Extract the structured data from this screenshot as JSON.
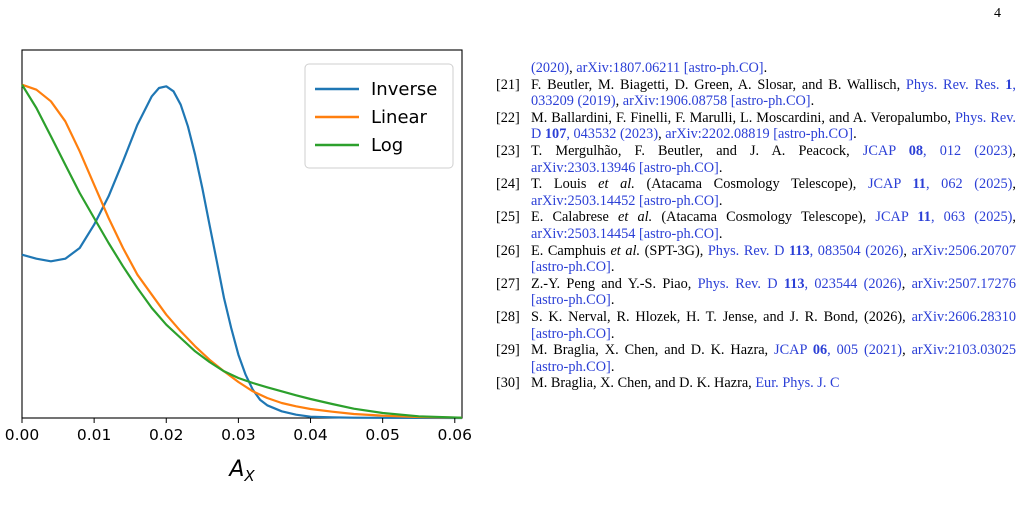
{
  "page_number": "4",
  "chart_data": {
    "type": "line",
    "xlabel": "A_X",
    "xlabel_main": "A",
    "xlabel_sub": "X",
    "ylabel": "",
    "xlim": [
      0.0,
      0.061
    ],
    "ylim": [
      0.0,
      1.05
    ],
    "x_ticks": [
      "0.00",
      "0.01",
      "0.02",
      "0.03",
      "0.04",
      "0.05",
      "0.06"
    ],
    "x_tick_values": [
      0.0,
      0.01,
      0.02,
      0.03,
      0.04,
      0.05,
      0.06
    ],
    "grid": false,
    "legend_position": "top-right",
    "series": [
      {
        "name": "Inverse",
        "color": "#1f77b4",
        "x": [
          0.0,
          0.002,
          0.004,
          0.006,
          0.008,
          0.01,
          0.012,
          0.014,
          0.016,
          0.018,
          0.019,
          0.02,
          0.021,
          0.022,
          0.023,
          0.024,
          0.025,
          0.026,
          0.027,
          0.028,
          0.029,
          0.03,
          0.031,
          0.032,
          0.033,
          0.034,
          0.036,
          0.038,
          0.04,
          0.043,
          0.046,
          0.05,
          0.055,
          0.061
        ],
        "values": [
          0.49,
          0.478,
          0.47,
          0.478,
          0.51,
          0.58,
          0.665,
          0.77,
          0.88,
          0.965,
          0.99,
          0.995,
          0.98,
          0.94,
          0.875,
          0.79,
          0.69,
          0.58,
          0.47,
          0.36,
          0.27,
          0.19,
          0.13,
          0.085,
          0.055,
          0.038,
          0.02,
          0.01,
          0.004,
          0.002,
          0.001,
          0.0005,
          0.0002,
          0.0
        ]
      },
      {
        "name": "Linear",
        "color": "#ff7f0e",
        "x": [
          0.0,
          0.002,
          0.004,
          0.006,
          0.008,
          0.01,
          0.012,
          0.014,
          0.016,
          0.018,
          0.02,
          0.022,
          0.024,
          0.026,
          0.028,
          0.03,
          0.032,
          0.034,
          0.036,
          0.038,
          0.04,
          0.043,
          0.046,
          0.05,
          0.055,
          0.061
        ],
        "values": [
          1.0,
          0.985,
          0.95,
          0.89,
          0.8,
          0.7,
          0.6,
          0.51,
          0.43,
          0.37,
          0.31,
          0.26,
          0.215,
          0.175,
          0.14,
          0.108,
          0.08,
          0.06,
          0.045,
          0.035,
          0.027,
          0.019,
          0.012,
          0.007,
          0.003,
          0.001
        ]
      },
      {
        "name": "Log",
        "color": "#2ca02c",
        "x": [
          0.0,
          0.002,
          0.004,
          0.006,
          0.008,
          0.01,
          0.012,
          0.014,
          0.016,
          0.018,
          0.02,
          0.022,
          0.024,
          0.026,
          0.028,
          0.03,
          0.032,
          0.034,
          0.036,
          0.038,
          0.04,
          0.043,
          0.046,
          0.05,
          0.055,
          0.061
        ],
        "values": [
          1.0,
          0.93,
          0.845,
          0.76,
          0.675,
          0.6,
          0.525,
          0.455,
          0.39,
          0.33,
          0.28,
          0.24,
          0.2,
          0.168,
          0.14,
          0.12,
          0.105,
          0.092,
          0.08,
          0.068,
          0.057,
          0.042,
          0.028,
          0.015,
          0.005,
          0.001
        ]
      }
    ]
  },
  "references": [
    {
      "num": "",
      "segments": [
        {
          "t": "(2020)",
          "link": true
        },
        {
          "t": ", ",
          "link": false
        },
        {
          "t": "arXiv:1807.06211 [astro-ph.CO]",
          "link": true
        },
        {
          "t": ".",
          "link": false
        }
      ]
    },
    {
      "num": "[21]",
      "segments": [
        {
          "t": "F. Beutler, M. Biagetti, D. Green, A. Slosar,  and B. Wallisch, ",
          "link": false
        },
        {
          "t": "Phys. Rev. Res. ",
          "link": true
        },
        {
          "t": "1",
          "link": true,
          "bold": true
        },
        {
          "t": ", 033209 (2019)",
          "link": true
        },
        {
          "t": ", ",
          "link": false
        },
        {
          "t": "arXiv:1906.08758 [astro-ph.CO]",
          "link": true
        },
        {
          "t": ".",
          "link": false
        }
      ]
    },
    {
      "num": "[22]",
      "segments": [
        {
          "t": "M. Ballardini, F. Finelli, F. Marulli, L. Moscardini, and A. Veropalumbo, ",
          "link": false
        },
        {
          "t": "Phys. Rev. D ",
          "link": true
        },
        {
          "t": "107",
          "link": true,
          "bold": true
        },
        {
          "t": ", 043532 (2023)",
          "link": true
        },
        {
          "t": ", ",
          "link": false
        },
        {
          "t": "arXiv:2202.08819 [astro-ph.CO]",
          "link": true
        },
        {
          "t": ".",
          "link": false
        }
      ]
    },
    {
      "num": "[23]",
      "segments": [
        {
          "t": "T. Mergulhão, F. Beutler,  and J. A. Peacock, ",
          "link": false
        },
        {
          "t": "JCAP ",
          "link": true
        },
        {
          "t": "08",
          "link": true,
          "bold": true
        },
        {
          "t": ", 012 (2023)",
          "link": true
        },
        {
          "t": ", ",
          "link": false
        },
        {
          "t": "arXiv:2303.13946 [astro-ph.CO]",
          "link": true
        },
        {
          "t": ".",
          "link": false
        }
      ]
    },
    {
      "num": "[24]",
      "segments": [
        {
          "t": "T. Louis ",
          "link": false
        },
        {
          "t": "et al.",
          "link": false,
          "italic": true
        },
        {
          "t": " (Atacama Cosmology Telescope), ",
          "link": false
        },
        {
          "t": "JCAP ",
          "link": true
        },
        {
          "t": "11",
          "link": true,
          "bold": true
        },
        {
          "t": ", 062 (2025)",
          "link": true
        },
        {
          "t": ", ",
          "link": false
        },
        {
          "t": "arXiv:2503.14452 [astro-ph.CO]",
          "link": true
        },
        {
          "t": ".",
          "link": false
        }
      ]
    },
    {
      "num": "[25]",
      "segments": [
        {
          "t": "E. Calabrese ",
          "link": false
        },
        {
          "t": "et al.",
          "link": false,
          "italic": true
        },
        {
          "t": " (Atacama Cosmology Telescope), ",
          "link": false
        },
        {
          "t": "JCAP ",
          "link": true
        },
        {
          "t": "11",
          "link": true,
          "bold": true
        },
        {
          "t": ", 063 (2025)",
          "link": true
        },
        {
          "t": ", ",
          "link": false
        },
        {
          "t": "arXiv:2503.14454 [astro-ph.CO]",
          "link": true
        },
        {
          "t": ".",
          "link": false
        }
      ]
    },
    {
      "num": "[26]",
      "segments": [
        {
          "t": "E. Camphuis ",
          "link": false
        },
        {
          "t": "et al.",
          "link": false,
          "italic": true
        },
        {
          "t": " (SPT-3G), ",
          "link": false
        },
        {
          "t": "Phys. Rev. D ",
          "link": true
        },
        {
          "t": "113",
          "link": true,
          "bold": true
        },
        {
          "t": ", 083504 (2026)",
          "link": true
        },
        {
          "t": ", ",
          "link": false
        },
        {
          "t": "arXiv:2506.20707 [astro-ph.CO]",
          "link": true
        },
        {
          "t": ".",
          "link": false
        }
      ]
    },
    {
      "num": "[27]",
      "segments": [
        {
          "t": "Z.-Y. Peng and Y.-S. Piao, ",
          "link": false
        },
        {
          "t": "Phys. Rev. D ",
          "link": true
        },
        {
          "t": "113",
          "link": true,
          "bold": true
        },
        {
          "t": ", 023544 (2026)",
          "link": true
        },
        {
          "t": ", ",
          "link": false
        },
        {
          "t": "arXiv:2507.17276 [astro-ph.CO]",
          "link": true
        },
        {
          "t": ".",
          "link": false
        }
      ]
    },
    {
      "num": "[28]",
      "segments": [
        {
          "t": "S. K. Nerval, R. Hlozek, H. T. Jense,  and J. R. Bond, (2026), ",
          "link": false
        },
        {
          "t": "arXiv:2606.28310 [astro-ph.CO]",
          "link": true
        },
        {
          "t": ".",
          "link": false
        }
      ]
    },
    {
      "num": "[29]",
      "segments": [
        {
          "t": "M. Braglia, X. Chen,  and D. K. Hazra, ",
          "link": false
        },
        {
          "t": "JCAP ",
          "link": true
        },
        {
          "t": "06",
          "link": true,
          "bold": true
        },
        {
          "t": ", 005 (2021)",
          "link": true
        },
        {
          "t": ", ",
          "link": false
        },
        {
          "t": "arXiv:2103.03025 [astro-ph.CO]",
          "link": true
        },
        {
          "t": ".",
          "link": false
        }
      ]
    },
    {
      "num": "[30]",
      "segments": [
        {
          "t": "M. Braglia, X. Chen,  and D. K. Hazra, ",
          "link": false
        },
        {
          "t": "Eur. Phys. J. C",
          "link": true
        }
      ]
    }
  ]
}
